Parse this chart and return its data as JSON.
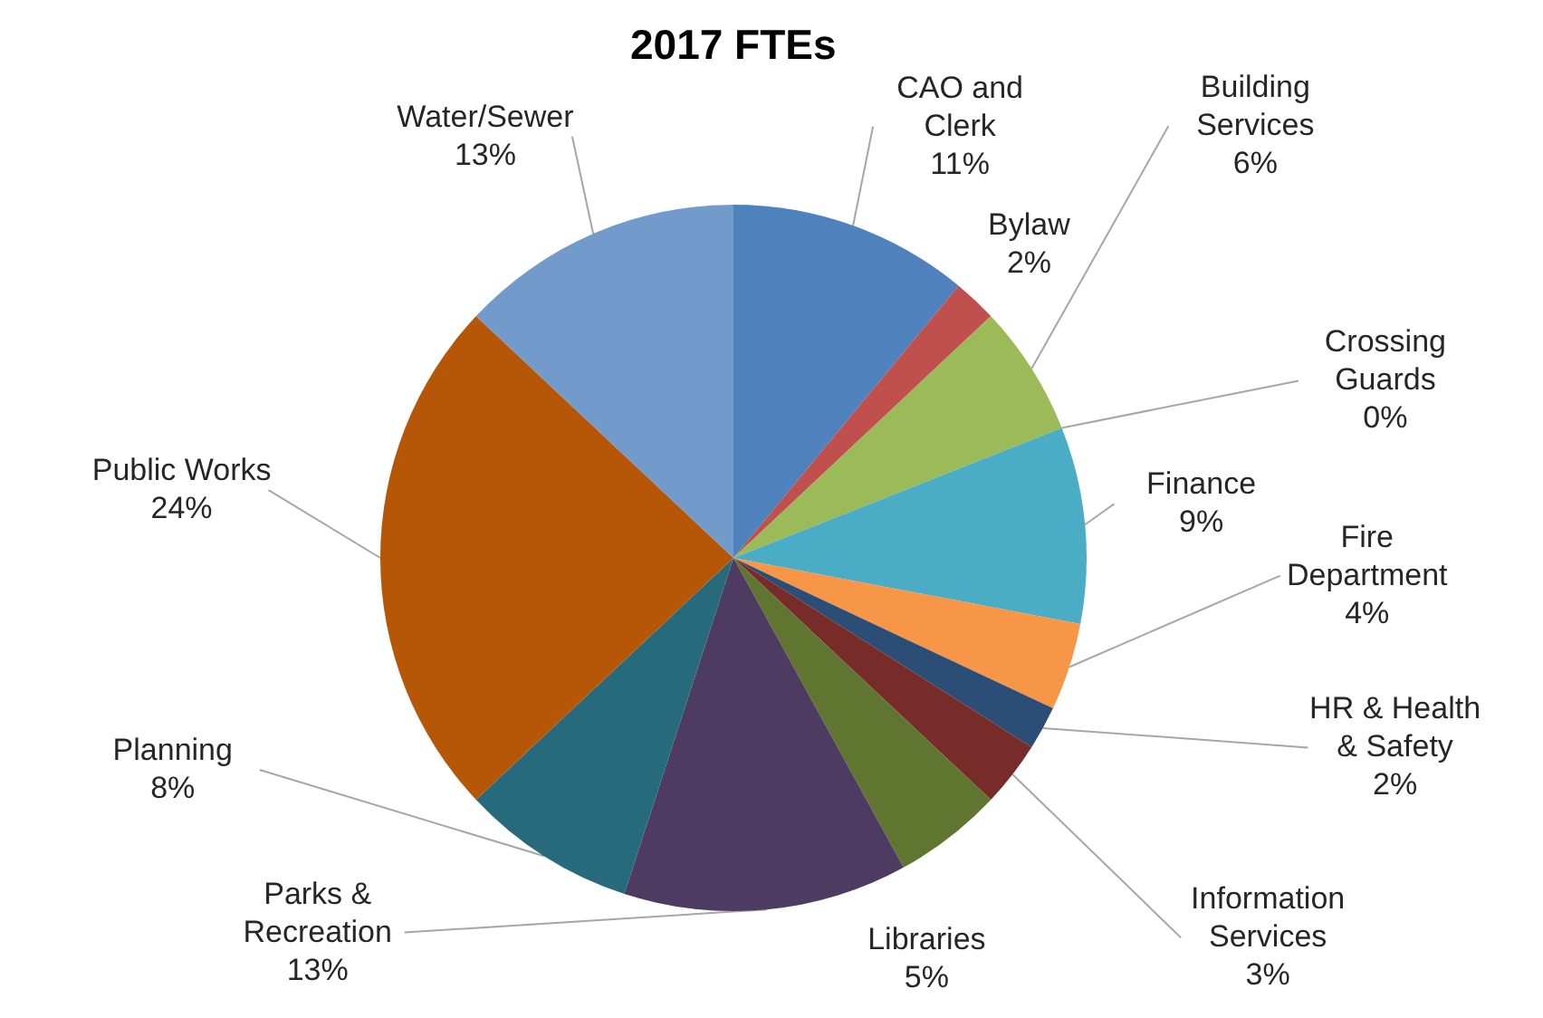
{
  "chart_data": {
    "type": "pie",
    "title": "2017 FTEs",
    "categories": [
      "CAO and Clerk",
      "Bylaw",
      "Building Services",
      "Crossing Guards",
      "Finance",
      "Fire Department",
      "HR & Health & Safety",
      "Information Services",
      "Libraries",
      "Parks & Recreation",
      "Planning",
      "Public Works",
      "Water/Sewer"
    ],
    "values": [
      11,
      2,
      6,
      0,
      9,
      4,
      2,
      3,
      5,
      13,
      8,
      24,
      13
    ],
    "value_labels": [
      "11%",
      "2%",
      "6%",
      "0%",
      "9%",
      "4%",
      "2%",
      "3%",
      "5%",
      "13%",
      "8%",
      "24%",
      "13%"
    ],
    "colors": [
      "#4f81bd",
      "#c0504d",
      "#9bbb59",
      "#8064a2",
      "#4bacc6",
      "#f79646",
      "#2c4d75",
      "#772c2a",
      "#5f7530",
      "#4d3b62",
      "#276a7c",
      "#b65708",
      "#729aca"
    ]
  }
}
